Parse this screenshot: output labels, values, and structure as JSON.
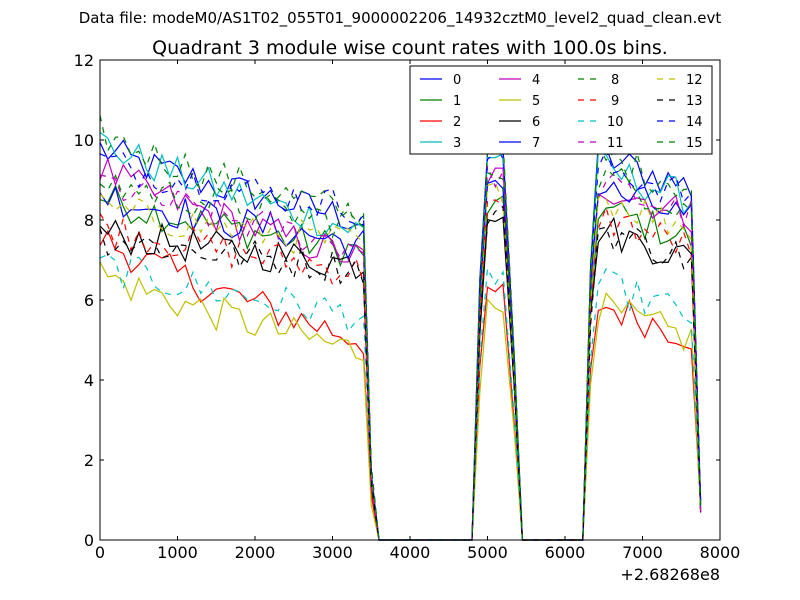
{
  "figure": {
    "suptitle": "Data file: modeM0/AS1T02_055T01_9000002206_14932cztM0_level2_quad_clean.evt"
  },
  "chart_data": {
    "type": "line",
    "title": "Quadrant 3 module wise count rates with 100.0s bins.",
    "xlabel": "",
    "ylabel": "",
    "xlim": [
      0,
      8000
    ],
    "ylim": [
      0,
      12
    ],
    "x_offset_label": "+2.68268e8",
    "xticks": [
      0,
      1000,
      2000,
      3000,
      4000,
      5000,
      6000,
      7000,
      8000
    ],
    "yticks": [
      0,
      2,
      4,
      6,
      8,
      10,
      12
    ],
    "legend_position": "top-right",
    "segments": [
      {
        "start": 0,
        "end": 3400,
        "end_decay": [
          3500,
          3600
        ],
        "zero_until": 4800
      },
      {
        "start": 4900,
        "end": 5250,
        "end_decay": [
          5350,
          5450
        ],
        "zero_until": 6230
      },
      {
        "start": 6330,
        "end": 7650,
        "end_decay": [
          7750
        ],
        "zero_until": null
      }
    ],
    "series": [
      {
        "name": "0",
        "color": "#0000ff",
        "style": "solid",
        "levels": [
          9.8,
          8.0,
          9.7,
          9.2
        ]
      },
      {
        "name": "1",
        "color": "#008000",
        "style": "solid",
        "levels": [
          8.6,
          7.2,
          8.3,
          7.9
        ]
      },
      {
        "name": "2",
        "color": "#ff0000",
        "style": "solid",
        "levels": [
          7.6,
          5.0,
          6.2,
          5.5
        ]
      },
      {
        "name": "3",
        "color": "#00bfbf",
        "style": "solid",
        "levels": [
          10.0,
          7.7,
          9.6,
          8.9
        ]
      },
      {
        "name": "4",
        "color": "#bf00bf",
        "style": "solid",
        "levels": [
          9.3,
          7.0,
          9.1,
          8.5
        ]
      },
      {
        "name": "5",
        "color": "#bfbf00",
        "style": "solid",
        "levels": [
          6.7,
          4.7,
          5.8,
          5.4
        ]
      },
      {
        "name": "6",
        "color": "#000000",
        "style": "solid",
        "levels": [
          7.7,
          6.9,
          8.2,
          7.4
        ]
      },
      {
        "name": "7",
        "color": "#0000ff",
        "style": "solid",
        "levels": [
          8.7,
          7.4,
          9.0,
          8.4
        ]
      },
      {
        "name": "8",
        "color": "#008000",
        "style": "dashed",
        "levels": [
          10.2,
          8.1,
          10.0,
          9.2
        ]
      },
      {
        "name": "9",
        "color": "#ff0000",
        "style": "dashed",
        "levels": [
          7.9,
          6.7,
          8.3,
          7.7
        ]
      },
      {
        "name": "10",
        "color": "#00bfbf",
        "style": "dashed",
        "levels": [
          6.9,
          5.6,
          6.6,
          6.0
        ]
      },
      {
        "name": "11",
        "color": "#bf00bf",
        "style": "dashed",
        "levels": [
          9.0,
          7.3,
          9.1,
          8.5
        ]
      },
      {
        "name": "12",
        "color": "#bfbf00",
        "style": "dashed",
        "levels": [
          8.3,
          7.4,
          8.7,
          8.2
        ]
      },
      {
        "name": "13",
        "color": "#000000",
        "style": "dashed",
        "levels": [
          7.6,
          6.8,
          8.1,
          7.4
        ]
      },
      {
        "name": "14",
        "color": "#0000ff",
        "style": "dashed",
        "levels": [
          9.5,
          8.3,
          9.7,
          9.0
        ]
      },
      {
        "name": "15",
        "color": "#008000",
        "style": "dashed",
        "levels": [
          9.0,
          7.9,
          9.3,
          8.7
        ]
      }
    ],
    "levels_meaning": "approximate count rate at: first-segment start, first-segment end, middle-segment peak, last-segment mean"
  }
}
